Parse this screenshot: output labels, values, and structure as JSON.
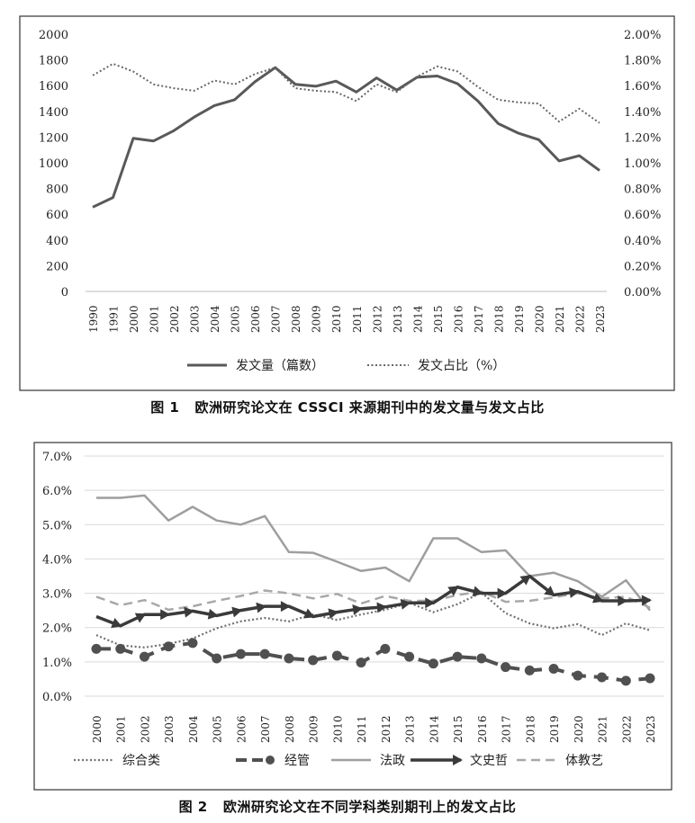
{
  "chart_data": [
    {
      "type": "line",
      "figure_label": "图 1",
      "caption": "欧洲研究论文在 CSSCI 来源期刊中的发文量与发文占比",
      "categories": [
        "1990",
        "1991",
        "2000",
        "2001",
        "2002",
        "2003",
        "2004",
        "2005",
        "2006",
        "2007",
        "2008",
        "2009",
        "2010",
        "2011",
        "2012",
        "2013",
        "2014",
        "2015",
        "2016",
        "2017",
        "2018",
        "2019",
        "2020",
        "2021",
        "2022",
        "2023"
      ],
      "y_ticks": [
        "0",
        "200",
        "400",
        "600",
        "800",
        "1000",
        "1200",
        "1400",
        "1600",
        "1800",
        "2000"
      ],
      "y2_ticks": [
        "0.00%",
        "0.20%",
        "0.40%",
        "0.60%",
        "0.80%",
        "1.00%",
        "1.20%",
        "1.40%",
        "1.60%",
        "1.80%",
        "2.00%"
      ],
      "ylim": [
        0,
        2000
      ],
      "y2lim": [
        0,
        2.0
      ],
      "series": [
        {
          "name": "发文量（篇数）",
          "axis": "left",
          "style": "solid",
          "values": [
            655,
            730,
            1190,
            1170,
            1250,
            1355,
            1445,
            1490,
            1630,
            1740,
            1610,
            1595,
            1635,
            1550,
            1660,
            1565,
            1665,
            1675,
            1615,
            1480,
            1305,
            1230,
            1180,
            1015,
            1055,
            940
          ]
        },
        {
          "name": "发文占比（%）",
          "axis": "right",
          "style": "dotted",
          "values": [
            1.68,
            1.77,
            1.71,
            1.61,
            1.58,
            1.56,
            1.64,
            1.61,
            1.69,
            1.74,
            1.58,
            1.56,
            1.55,
            1.48,
            1.61,
            1.55,
            1.67,
            1.75,
            1.71,
            1.59,
            1.49,
            1.47,
            1.46,
            1.32,
            1.42,
            1.31
          ]
        }
      ],
      "grid": false,
      "legend": "bottom"
    },
    {
      "type": "line",
      "figure_label": "图 2",
      "caption": "欧洲研究论文在不同学科类别期刊上的发文占比",
      "categories": [
        "2000",
        "2001",
        "2002",
        "2003",
        "2004",
        "2005",
        "2006",
        "2007",
        "2008",
        "2009",
        "2010",
        "2011",
        "2012",
        "2013",
        "2014",
        "2015",
        "2016",
        "2017",
        "2018",
        "2019",
        "2020",
        "2021",
        "2022",
        "2023"
      ],
      "y_ticks": [
        "0.0%",
        "1.0%",
        "2.0%",
        "3.0%",
        "4.0%",
        "5.0%",
        "6.0%",
        "7.0%"
      ],
      "ylim": [
        0,
        7.0
      ],
      "series": [
        {
          "name": "综合类",
          "style": "dotted",
          "values": [
            1.78,
            1.48,
            1.42,
            1.52,
            1.68,
            1.98,
            2.18,
            2.28,
            2.18,
            2.38,
            2.22,
            2.38,
            2.52,
            2.72,
            2.45,
            2.68,
            3.02,
            2.42,
            2.12,
            1.98,
            2.1,
            1.78,
            2.12,
            1.92
          ]
        },
        {
          "name": "经管",
          "style": "dash-dot",
          "values": [
            1.38,
            1.38,
            1.15,
            1.45,
            1.55,
            1.1,
            1.23,
            1.23,
            1.1,
            1.05,
            1.18,
            0.98,
            1.38,
            1.15,
            0.95,
            1.15,
            1.1,
            0.85,
            0.75,
            0.8,
            0.6,
            0.55,
            0.45,
            0.52
          ]
        },
        {
          "name": "法政",
          "style": "solid-gray",
          "values": [
            5.78,
            5.78,
            5.85,
            5.12,
            5.52,
            5.12,
            5.0,
            5.25,
            4.2,
            4.18,
            3.92,
            3.65,
            3.75,
            3.35,
            4.6,
            4.6,
            4.2,
            4.25,
            3.5,
            3.6,
            3.35,
            2.9,
            3.38,
            2.5
          ]
        },
        {
          "name": "文史哲",
          "style": "arrow",
          "values": [
            2.32,
            2.05,
            2.38,
            2.38,
            2.48,
            2.35,
            2.5,
            2.62,
            2.62,
            2.32,
            2.45,
            2.55,
            2.6,
            2.72,
            2.72,
            3.18,
            3.0,
            3.0,
            3.5,
            2.95,
            3.05,
            2.78,
            2.78,
            2.8
          ]
        },
        {
          "name": "体教艺",
          "style": "dashed",
          "values": [
            2.9,
            2.65,
            2.8,
            2.52,
            2.62,
            2.78,
            2.92,
            3.08,
            3.0,
            2.85,
            2.98,
            2.7,
            2.92,
            2.78,
            2.78,
            2.95,
            3.05,
            2.75,
            2.78,
            2.88,
            3.0,
            2.85,
            2.9,
            2.58
          ]
        }
      ],
      "grid": true,
      "legend": "bottom"
    }
  ]
}
